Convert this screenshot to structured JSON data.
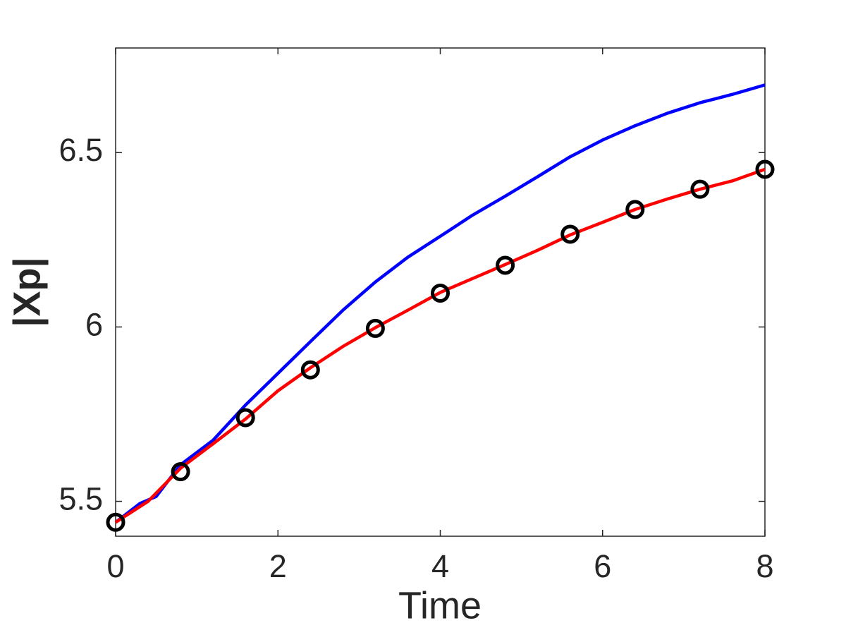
{
  "chart_data": {
    "type": "line",
    "xlabel": "Time",
    "ylabel": "|Xp|",
    "xlim": [
      0,
      8
    ],
    "ylim": [
      5.4,
      6.8
    ],
    "xticks": [
      0,
      2,
      4,
      6,
      8
    ],
    "yticks": [
      5.5,
      6,
      6.5
    ],
    "series": [
      {
        "color": "#0000ff",
        "style": "line",
        "x": [
          0,
          0.3,
          0.5,
          0.8,
          1.2,
          1.6,
          2,
          2.4,
          2.8,
          3.2,
          3.6,
          4,
          4.4,
          4.8,
          5.2,
          5.6,
          6,
          6.4,
          6.8,
          7.2,
          7.6,
          8
        ],
        "values": [
          5.44,
          5.494,
          5.514,
          5.605,
          5.675,
          5.776,
          5.867,
          5.958,
          6.048,
          6.129,
          6.2,
          6.26,
          6.321,
          6.375,
          6.431,
          6.488,
          6.536,
          6.577,
          6.613,
          6.643,
          6.667,
          6.694
        ]
      },
      {
        "color": "#ff0000",
        "style": "line",
        "x": [
          0,
          0.4,
          0.8,
          1.2,
          1.6,
          2,
          2.4,
          2.8,
          3.2,
          3.6,
          4,
          4.4,
          4.8,
          5.2,
          5.6,
          6,
          6.4,
          6.8,
          7.2,
          7.6,
          8
        ],
        "values": [
          5.44,
          5.5,
          5.595,
          5.665,
          5.736,
          5.817,
          5.883,
          5.944,
          5.998,
          6.048,
          6.099,
          6.139,
          6.179,
          6.22,
          6.264,
          6.3,
          6.337,
          6.367,
          6.395,
          6.419,
          6.452
        ]
      },
      {
        "color": "#000000",
        "style": "marker",
        "x": [
          0,
          0.8,
          1.6,
          2.4,
          3.2,
          4,
          4.8,
          5.6,
          6.4,
          7.2,
          8
        ],
        "values": [
          5.44,
          5.585,
          5.74,
          5.877,
          5.996,
          6.097,
          6.177,
          6.266,
          6.337,
          6.395,
          6.452
        ]
      }
    ]
  }
}
